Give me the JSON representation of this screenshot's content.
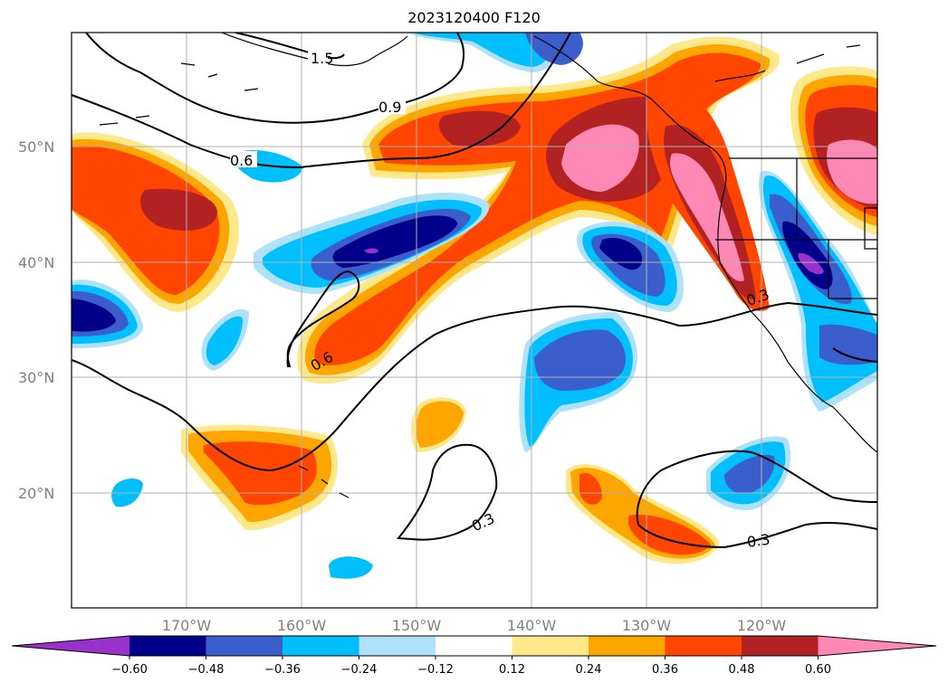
{
  "title": "2023120400 F120",
  "colors": {
    "pos_012": "#ffe88a",
    "pos_024": "#ffa500",
    "pos_036": "#ff4500",
    "pos_048": "#b22222",
    "pos_060": "#ff88b4",
    "neg_012": "#aee2fa",
    "neg_024": "#00bfff",
    "neg_036": "#3a5fcd",
    "neg_048": "#00008b",
    "neg_060": "#9932cc"
  },
  "lat_labels": [
    "50°N",
    "40°N",
    "30°N",
    "20°N"
  ],
  "lon_labels": [
    "170°W",
    "160°W",
    "150°W",
    "140°W",
    "130°W",
    "120°W"
  ],
  "colorbar": {
    "ticks": [
      "−0.60",
      "−0.48",
      "−0.36",
      "−0.24",
      "−0.12",
      "0.12",
      "0.24",
      "0.36",
      "0.48",
      "0.60"
    ],
    "colors": [
      "#9932cc",
      "#00008b",
      "#3a5fcd",
      "#00bfff",
      "#aee2fa",
      "#ffffff",
      "#ffe88a",
      "#ffa500",
      "#ff4500",
      "#b22222",
      "#ff88b4"
    ]
  },
  "contour_labels": [
    "1.5",
    "0.9",
    "0.6",
    "0.6",
    "0.3",
    "0.3",
    "0.3"
  ]
}
